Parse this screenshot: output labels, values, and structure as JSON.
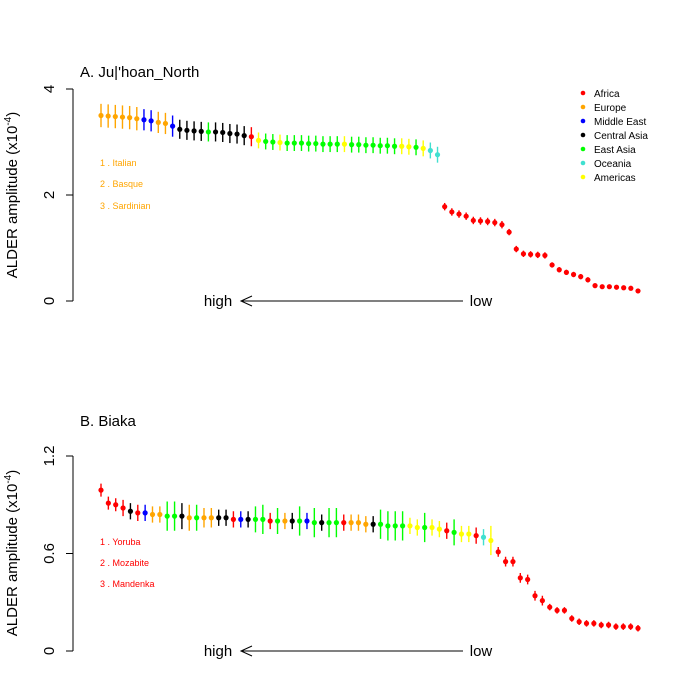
{
  "legend": {
    "position": "top-right",
    "items": [
      {
        "label": "Africa",
        "color": "#ff0000"
      },
      {
        "label": "Europe",
        "color": "#ffa500"
      },
      {
        "label": "Middle East",
        "color": "#0000ff"
      },
      {
        "label": "Central Asia",
        "color": "#000000"
      },
      {
        "label": "East Asia",
        "color": "#00ff00"
      },
      {
        "label": "Oceania",
        "color": "#40e0d0"
      },
      {
        "label": "Americas",
        "color": "#ffff00"
      }
    ]
  },
  "chart_data": [
    {
      "type": "scatter",
      "title": "A. Ju|'hoan_North",
      "ylabel": "ALDER amplitude (x10",
      "ylabel_exp": "-4",
      "ylabel_close": ")",
      "ylim": [
        0,
        4
      ],
      "yticks": [
        {
          "v": 0,
          "label": "0"
        },
        {
          "v": 2,
          "label": "2"
        },
        {
          "v": 4,
          "label": "4"
        }
      ],
      "arrow": {
        "left_label": "high",
        "right_label": "low"
      },
      "top_list": {
        "color": "#ffa500",
        "items": [
          "1 . Italian",
          "2 . Basque",
          "3 . Sardinian"
        ]
      },
      "points": [
        {
          "y": 3.5,
          "err": 0.22,
          "region": "Europe"
        },
        {
          "y": 3.49,
          "err": 0.22,
          "region": "Europe"
        },
        {
          "y": 3.48,
          "err": 0.22,
          "region": "Europe"
        },
        {
          "y": 3.47,
          "err": 0.22,
          "region": "Europe"
        },
        {
          "y": 3.46,
          "err": 0.22,
          "region": "Europe"
        },
        {
          "y": 3.44,
          "err": 0.22,
          "region": "Europe"
        },
        {
          "y": 3.42,
          "err": 0.2,
          "region": "Middle East"
        },
        {
          "y": 3.4,
          "err": 0.2,
          "region": "Middle East"
        },
        {
          "y": 3.37,
          "err": 0.2,
          "region": "Europe"
        },
        {
          "y": 3.35,
          "err": 0.2,
          "region": "Europe"
        },
        {
          "y": 3.3,
          "err": 0.2,
          "region": "Middle East"
        },
        {
          "y": 3.24,
          "err": 0.18,
          "region": "Central Asia"
        },
        {
          "y": 3.22,
          "err": 0.18,
          "region": "Central Asia"
        },
        {
          "y": 3.21,
          "err": 0.18,
          "region": "Central Asia"
        },
        {
          "y": 3.2,
          "err": 0.18,
          "region": "Central Asia"
        },
        {
          "y": 3.19,
          "err": 0.18,
          "region": "East Asia"
        },
        {
          "y": 3.19,
          "err": 0.18,
          "region": "Central Asia"
        },
        {
          "y": 3.18,
          "err": 0.18,
          "region": "Central Asia"
        },
        {
          "y": 3.16,
          "err": 0.18,
          "region": "Central Asia"
        },
        {
          "y": 3.15,
          "err": 0.18,
          "region": "Central Asia"
        },
        {
          "y": 3.12,
          "err": 0.18,
          "region": "Central Asia"
        },
        {
          "y": 3.1,
          "err": 0.18,
          "region": "Africa"
        },
        {
          "y": 3.03,
          "err": 0.15,
          "region": "Americas"
        },
        {
          "y": 3.01,
          "err": 0.15,
          "region": "East Asia"
        },
        {
          "y": 3.0,
          "err": 0.15,
          "region": "East Asia"
        },
        {
          "y": 2.99,
          "err": 0.15,
          "region": "Americas"
        },
        {
          "y": 2.98,
          "err": 0.15,
          "region": "East Asia"
        },
        {
          "y": 2.98,
          "err": 0.15,
          "region": "East Asia"
        },
        {
          "y": 2.98,
          "err": 0.15,
          "region": "East Asia"
        },
        {
          "y": 2.97,
          "err": 0.15,
          "region": "East Asia"
        },
        {
          "y": 2.97,
          "err": 0.15,
          "region": "East Asia"
        },
        {
          "y": 2.96,
          "err": 0.15,
          "region": "East Asia"
        },
        {
          "y": 2.96,
          "err": 0.15,
          "region": "East Asia"
        },
        {
          "y": 2.96,
          "err": 0.15,
          "region": "East Asia"
        },
        {
          "y": 2.96,
          "err": 0.15,
          "region": "Americas"
        },
        {
          "y": 2.95,
          "err": 0.15,
          "region": "East Asia"
        },
        {
          "y": 2.95,
          "err": 0.15,
          "region": "East Asia"
        },
        {
          "y": 2.94,
          "err": 0.15,
          "region": "East Asia"
        },
        {
          "y": 2.94,
          "err": 0.15,
          "region": "East Asia"
        },
        {
          "y": 2.93,
          "err": 0.15,
          "region": "East Asia"
        },
        {
          "y": 2.93,
          "err": 0.15,
          "region": "East Asia"
        },
        {
          "y": 2.92,
          "err": 0.15,
          "region": "East Asia"
        },
        {
          "y": 2.92,
          "err": 0.15,
          "region": "Americas"
        },
        {
          "y": 2.91,
          "err": 0.15,
          "region": "Americas"
        },
        {
          "y": 2.9,
          "err": 0.15,
          "region": "East Asia"
        },
        {
          "y": 2.88,
          "err": 0.15,
          "region": "Americas"
        },
        {
          "y": 2.84,
          "err": 0.15,
          "region": "Oceania"
        },
        {
          "y": 2.76,
          "err": 0.15,
          "region": "Oceania"
        },
        {
          "y": 1.78,
          "err": 0.07,
          "region": "Africa"
        },
        {
          "y": 1.68,
          "err": 0.07,
          "region": "Africa"
        },
        {
          "y": 1.64,
          "err": 0.07,
          "region": "Africa"
        },
        {
          "y": 1.6,
          "err": 0.07,
          "region": "Africa"
        },
        {
          "y": 1.52,
          "err": 0.07,
          "region": "Africa"
        },
        {
          "y": 1.51,
          "err": 0.07,
          "region": "Africa"
        },
        {
          "y": 1.5,
          "err": 0.07,
          "region": "Africa"
        },
        {
          "y": 1.48,
          "err": 0.07,
          "region": "Africa"
        },
        {
          "y": 1.44,
          "err": 0.07,
          "region": "Africa"
        },
        {
          "y": 1.3,
          "err": 0.06,
          "region": "Africa"
        },
        {
          "y": 0.98,
          "err": 0.06,
          "region": "Africa"
        },
        {
          "y": 0.89,
          "err": 0.06,
          "region": "Africa"
        },
        {
          "y": 0.88,
          "err": 0.06,
          "region": "Africa"
        },
        {
          "y": 0.87,
          "err": 0.06,
          "region": "Africa"
        },
        {
          "y": 0.86,
          "err": 0.06,
          "region": "Africa"
        },
        {
          "y": 0.68,
          "err": 0.05,
          "region": "Africa"
        },
        {
          "y": 0.59,
          "err": 0.05,
          "region": "Africa"
        },
        {
          "y": 0.54,
          "err": 0.05,
          "region": "Africa"
        },
        {
          "y": 0.5,
          "err": 0.05,
          "region": "Africa"
        },
        {
          "y": 0.46,
          "err": 0.05,
          "region": "Africa"
        },
        {
          "y": 0.4,
          "err": 0.05,
          "region": "Africa"
        },
        {
          "y": 0.29,
          "err": 0.04,
          "region": "Africa"
        },
        {
          "y": 0.27,
          "err": 0.04,
          "region": "Africa"
        },
        {
          "y": 0.27,
          "err": 0.04,
          "region": "Africa"
        },
        {
          "y": 0.26,
          "err": 0.04,
          "region": "Africa"
        },
        {
          "y": 0.25,
          "err": 0.04,
          "region": "Africa"
        },
        {
          "y": 0.24,
          "err": 0.04,
          "region": "Africa"
        },
        {
          "y": 0.19,
          "err": 0.04,
          "region": "Africa"
        }
      ]
    },
    {
      "type": "scatter",
      "title": "B. Biaka",
      "ylabel": "ALDER amplitude (x10",
      "ylabel_exp": "-4",
      "ylabel_close": ")",
      "ylim": [
        0,
        1.2
      ],
      "yticks": [
        {
          "v": 0,
          "label": "0"
        },
        {
          "v": 0.6,
          "label": "0.6"
        },
        {
          "v": 1.2,
          "label": "1.2"
        }
      ],
      "arrow": {
        "left_label": "high",
        "right_label": "low"
      },
      "top_list": {
        "color": "#ff0000",
        "items": [
          "1 . Yoruba",
          "2 . Mozabite",
          "3 . Mandenka"
        ]
      },
      "points": [
        {
          "y": 0.99,
          "err": 0.04,
          "region": "Africa"
        },
        {
          "y": 0.91,
          "err": 0.04,
          "region": "Africa"
        },
        {
          "y": 0.9,
          "err": 0.04,
          "region": "Africa"
        },
        {
          "y": 0.88,
          "err": 0.05,
          "region": "Africa"
        },
        {
          "y": 0.86,
          "err": 0.05,
          "region": "Central Asia"
        },
        {
          "y": 0.85,
          "err": 0.05,
          "region": "Africa"
        },
        {
          "y": 0.85,
          "err": 0.05,
          "region": "Middle East"
        },
        {
          "y": 0.84,
          "err": 0.05,
          "region": "Europe"
        },
        {
          "y": 0.84,
          "err": 0.05,
          "region": "Europe"
        },
        {
          "y": 0.83,
          "err": 0.09,
          "region": "East Asia"
        },
        {
          "y": 0.83,
          "err": 0.09,
          "region": "East Asia"
        },
        {
          "y": 0.83,
          "err": 0.08,
          "region": "Central Asia"
        },
        {
          "y": 0.82,
          "err": 0.08,
          "region": "Europe"
        },
        {
          "y": 0.82,
          "err": 0.08,
          "region": "East Asia"
        },
        {
          "y": 0.82,
          "err": 0.06,
          "region": "Europe"
        },
        {
          "y": 0.82,
          "err": 0.06,
          "region": "Europe"
        },
        {
          "y": 0.82,
          "err": 0.05,
          "region": "Central Asia"
        },
        {
          "y": 0.82,
          "err": 0.05,
          "region": "Central Asia"
        },
        {
          "y": 0.81,
          "err": 0.05,
          "region": "Africa"
        },
        {
          "y": 0.81,
          "err": 0.05,
          "region": "Middle East"
        },
        {
          "y": 0.81,
          "err": 0.05,
          "region": "Central Asia"
        },
        {
          "y": 0.81,
          "err": 0.08,
          "region": "East Asia"
        },
        {
          "y": 0.81,
          "err": 0.09,
          "region": "East Asia"
        },
        {
          "y": 0.8,
          "err": 0.05,
          "region": "Africa"
        },
        {
          "y": 0.8,
          "err": 0.08,
          "region": "East Asia"
        },
        {
          "y": 0.8,
          "err": 0.05,
          "region": "Europe"
        },
        {
          "y": 0.8,
          "err": 0.05,
          "region": "Central Asia"
        },
        {
          "y": 0.8,
          "err": 0.09,
          "region": "East Asia"
        },
        {
          "y": 0.8,
          "err": 0.05,
          "region": "Middle East"
        },
        {
          "y": 0.79,
          "err": 0.09,
          "region": "East Asia"
        },
        {
          "y": 0.79,
          "err": 0.05,
          "region": "Central Asia"
        },
        {
          "y": 0.79,
          "err": 0.09,
          "region": "East Asia"
        },
        {
          "y": 0.79,
          "err": 0.09,
          "region": "East Asia"
        },
        {
          "y": 0.79,
          "err": 0.05,
          "region": "Africa"
        },
        {
          "y": 0.79,
          "err": 0.05,
          "region": "Europe"
        },
        {
          "y": 0.79,
          "err": 0.05,
          "region": "Europe"
        },
        {
          "y": 0.78,
          "err": 0.05,
          "region": "Europe"
        },
        {
          "y": 0.78,
          "err": 0.05,
          "region": "Central Asia"
        },
        {
          "y": 0.78,
          "err": 0.09,
          "region": "East Asia"
        },
        {
          "y": 0.77,
          "err": 0.09,
          "region": "East Asia"
        },
        {
          "y": 0.77,
          "err": 0.09,
          "region": "East Asia"
        },
        {
          "y": 0.77,
          "err": 0.09,
          "region": "East Asia"
        },
        {
          "y": 0.77,
          "err": 0.05,
          "region": "Americas"
        },
        {
          "y": 0.76,
          "err": 0.05,
          "region": "Americas"
        },
        {
          "y": 0.76,
          "err": 0.09,
          "region": "East Asia"
        },
        {
          "y": 0.76,
          "err": 0.05,
          "region": "Americas"
        },
        {
          "y": 0.75,
          "err": 0.05,
          "region": "Americas"
        },
        {
          "y": 0.74,
          "err": 0.05,
          "region": "Africa"
        },
        {
          "y": 0.73,
          "err": 0.08,
          "region": "East Asia"
        },
        {
          "y": 0.72,
          "err": 0.05,
          "region": "Americas"
        },
        {
          "y": 0.72,
          "err": 0.05,
          "region": "Americas"
        },
        {
          "y": 0.71,
          "err": 0.05,
          "region": "Africa"
        },
        {
          "y": 0.7,
          "err": 0.05,
          "region": "Oceania"
        },
        {
          "y": 0.68,
          "err": 0.09,
          "region": "Americas"
        },
        {
          "y": 0.61,
          "err": 0.03,
          "region": "Africa"
        },
        {
          "y": 0.55,
          "err": 0.03,
          "region": "Africa"
        },
        {
          "y": 0.55,
          "err": 0.03,
          "region": "Africa"
        },
        {
          "y": 0.45,
          "err": 0.03,
          "region": "Africa"
        },
        {
          "y": 0.44,
          "err": 0.03,
          "region": "Africa"
        },
        {
          "y": 0.34,
          "err": 0.03,
          "region": "Africa"
        },
        {
          "y": 0.31,
          "err": 0.03,
          "region": "Africa"
        },
        {
          "y": 0.27,
          "err": 0.02,
          "region": "Africa"
        },
        {
          "y": 0.25,
          "err": 0.02,
          "region": "Africa"
        },
        {
          "y": 0.25,
          "err": 0.02,
          "region": "Africa"
        },
        {
          "y": 0.2,
          "err": 0.02,
          "region": "Africa"
        },
        {
          "y": 0.18,
          "err": 0.02,
          "region": "Africa"
        },
        {
          "y": 0.17,
          "err": 0.02,
          "region": "Africa"
        },
        {
          "y": 0.17,
          "err": 0.02,
          "region": "Africa"
        },
        {
          "y": 0.16,
          "err": 0.02,
          "region": "Africa"
        },
        {
          "y": 0.16,
          "err": 0.02,
          "region": "Africa"
        },
        {
          "y": 0.15,
          "err": 0.02,
          "region": "Africa"
        },
        {
          "y": 0.15,
          "err": 0.02,
          "region": "Africa"
        },
        {
          "y": 0.15,
          "err": 0.02,
          "region": "Africa"
        },
        {
          "y": 0.14,
          "err": 0.02,
          "region": "Africa"
        }
      ]
    }
  ]
}
